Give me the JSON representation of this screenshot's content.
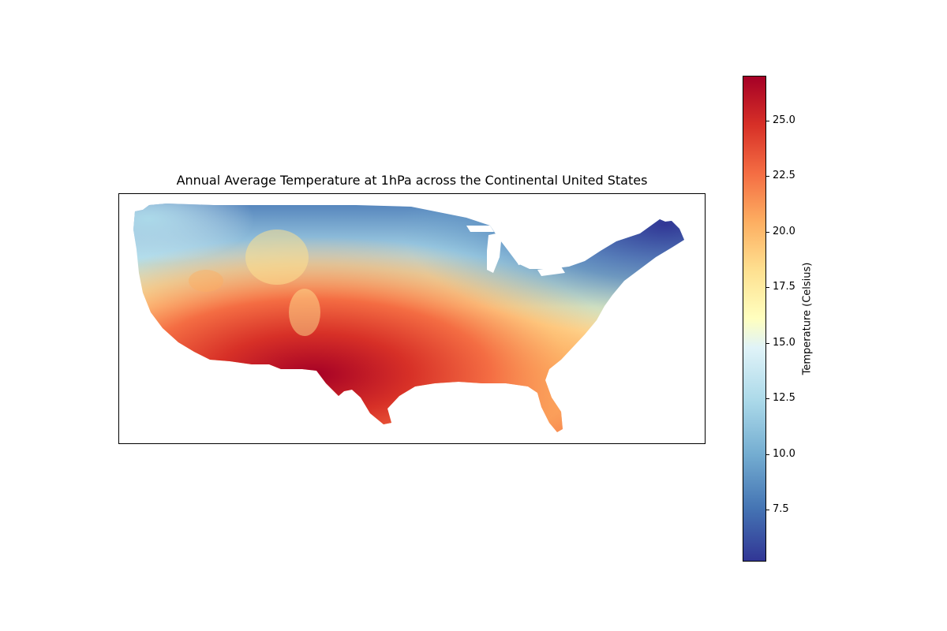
{
  "title": "Annual Average Temperature at 1hPa across the Continental United States",
  "colorbar": {
    "label": "Temperature (Celsius)",
    "min": 5.2,
    "max": 27.0,
    "colormap": "RdYlBu_r",
    "ticks": [
      7.5,
      10.0,
      12.5,
      15.0,
      17.5,
      20.0,
      22.5,
      25.0
    ],
    "tick_labels": [
      "7.5",
      "10.0",
      "12.5",
      "15.0",
      "17.5",
      "20.0",
      "22.5",
      "25.0"
    ],
    "colors": [
      "#313695",
      "#4575b4",
      "#74add1",
      "#abd9e9",
      "#e0f3f8",
      "#ffffbf",
      "#fee090",
      "#fdae61",
      "#f46d43",
      "#d73027",
      "#a50026"
    ]
  },
  "map": {
    "region": "Continental United States",
    "axes_ticks": "none",
    "pattern": "hottest in the desert southwest, coolest across the northern tier and New England"
  }
}
